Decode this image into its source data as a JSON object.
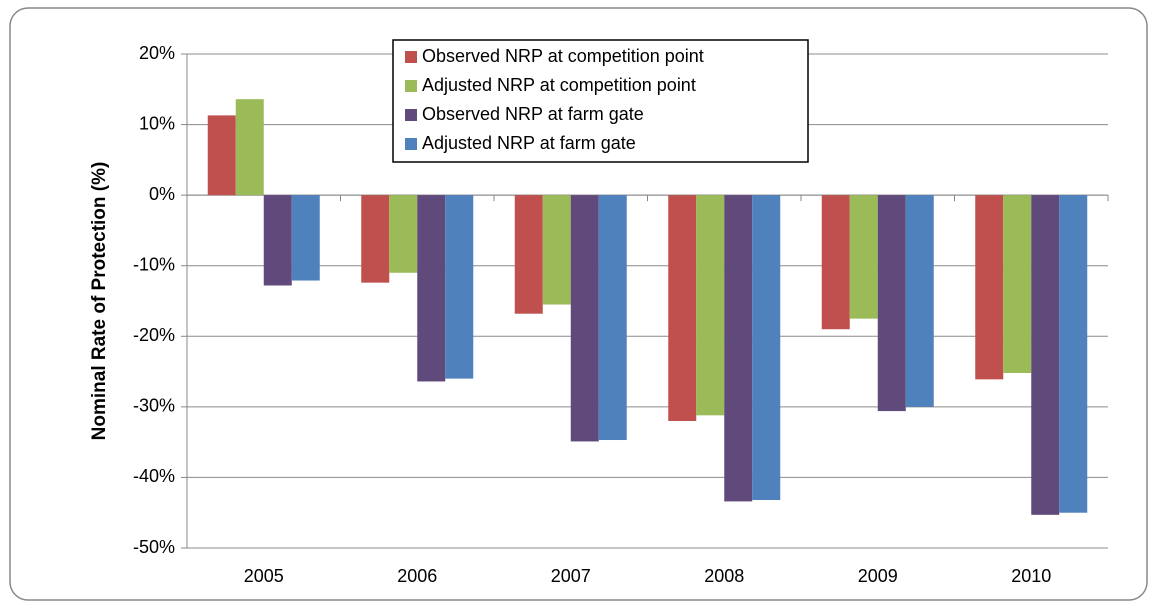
{
  "chart_data": {
    "type": "bar",
    "y_label": "Nominal Rate of Protection (%)",
    "categories": [
      "2005",
      "2006",
      "2007",
      "2008",
      "2009",
      "2010"
    ],
    "series": [
      {
        "name": "Observed NRP at competition point",
        "color": "#c0504d",
        "values": [
          11.3,
          -12.4,
          -16.8,
          -32.0,
          -19.0,
          -26.1
        ]
      },
      {
        "name": "Adjusted NRP at competition point",
        "color": "#9bbb59",
        "values": [
          13.6,
          -11.0,
          -15.5,
          -31.2,
          -17.5,
          -25.2
        ]
      },
      {
        "name": "Observed NRP at farm gate",
        "color": "#604a7b",
        "values": [
          -12.8,
          -26.4,
          -34.9,
          -43.4,
          -30.6,
          -45.3
        ]
      },
      {
        "name": "Adjusted NRP at farm gate",
        "color": "#4f81bd",
        "values": [
          -12.1,
          -26.0,
          -34.7,
          -43.2,
          -30.0,
          -45.0
        ]
      }
    ],
    "ylim": [
      -50,
      20
    ],
    "yticks": [
      {
        "value": -50,
        "label": "-50%"
      },
      {
        "value": -40,
        "label": "-40%"
      },
      {
        "value": -30,
        "label": "-30%"
      },
      {
        "value": -20,
        "label": "-20%"
      },
      {
        "value": -10,
        "label": "-10%"
      },
      {
        "value": 0,
        "label": "0%"
      },
      {
        "value": 10,
        "label": "10%"
      },
      {
        "value": 20,
        "label": "20%"
      }
    ],
    "grid": true
  }
}
